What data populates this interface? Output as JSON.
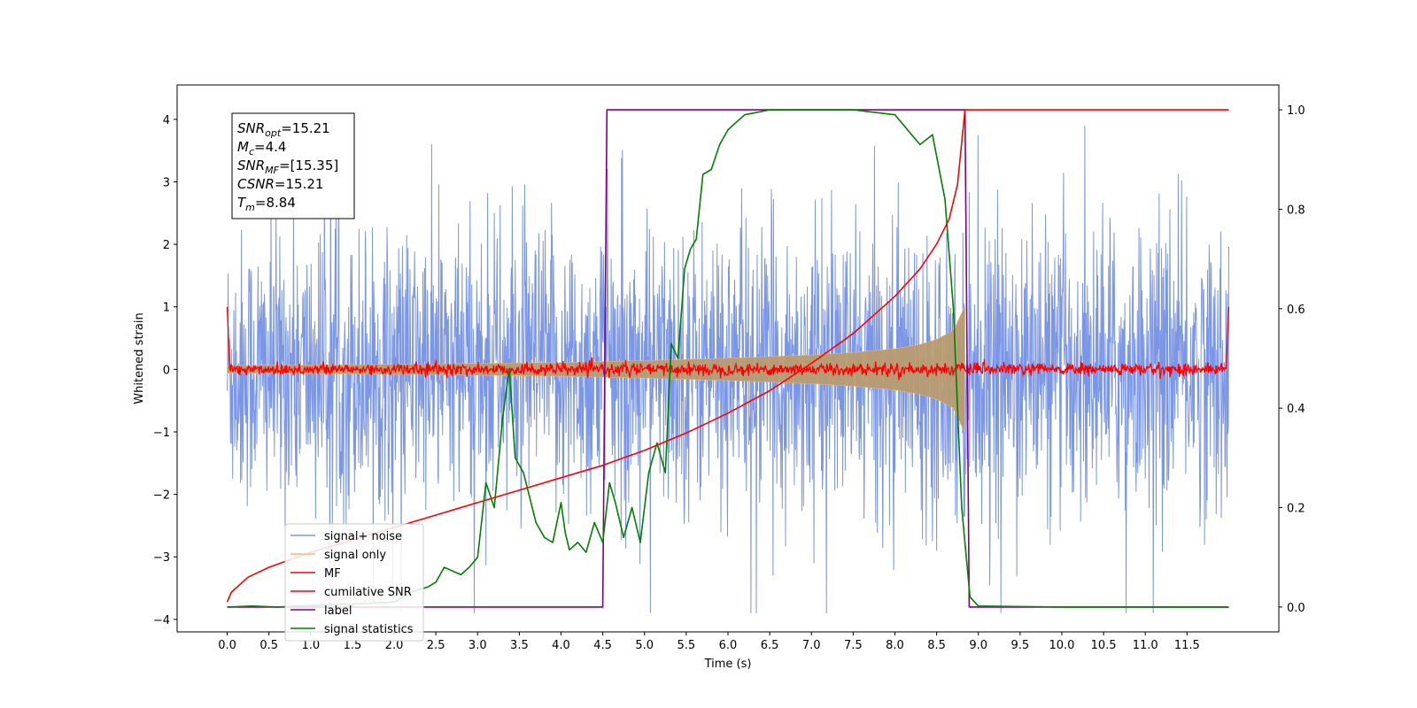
{
  "chart_data": {
    "type": "line",
    "xlabel": "Time (s)",
    "ylabel": "Whitened strain",
    "xlim": [
      -0.6,
      12.6
    ],
    "ylim": [
      -4.2,
      4.55
    ],
    "ylim_right": [
      -0.05,
      1.05
    ],
    "x_ticks": [
      "0.0",
      "0.5",
      "1.0",
      "1.5",
      "2.0",
      "2.5",
      "3.0",
      "3.5",
      "4.0",
      "4.5",
      "5.0",
      "5.5",
      "6.0",
      "6.5",
      "7.0",
      "7.5",
      "8.0",
      "8.5",
      "9.0",
      "9.5",
      "10.0",
      "10.5",
      "11.0",
      "11.5"
    ],
    "y_ticks_left": [
      "4",
      "3",
      "2",
      "1",
      "0",
      "−1",
      "−2",
      "−3",
      "−4"
    ],
    "y_ticks_right": [
      "1.0",
      "0.8",
      "0.6",
      "0.4",
      "0.2",
      "0.0"
    ],
    "info_box": [
      {
        "sym": "SNR",
        "sub": "opt",
        "val": "=15.21"
      },
      {
        "sym": "M",
        "sub": "c",
        "val": "=4.4"
      },
      {
        "sym": "SNR",
        "sub": "MF",
        "val": "=[15.35]"
      },
      {
        "sym": "CSNR",
        "sub": "",
        "val": "=15.21"
      },
      {
        "sym": "T",
        "sub": "m",
        "val": "=8.84"
      }
    ],
    "legend_position": "lower-left",
    "series": [
      {
        "name": "signal+ noise",
        "axis": "left",
        "color": "#7b96e6",
        "description_values": {
          "x_start": 0.0,
          "x_end": 12.0,
          "noise_amplitude_typical": 1.5,
          "peak_range": [
            -3.9,
            3.9
          ]
        }
      },
      {
        "name": "signal only",
        "axis": "left",
        "color": "#f5b97a",
        "envelope": {
          "x": [
            0.0,
            2.0,
            4.0,
            5.0,
            6.0,
            7.0,
            7.5,
            8.0,
            8.3,
            8.5,
            8.7,
            8.84
          ],
          "amp": [
            0.06,
            0.08,
            0.11,
            0.14,
            0.18,
            0.23,
            0.27,
            0.33,
            0.4,
            0.48,
            0.62,
            1.02
          ]
        }
      },
      {
        "name": "MF",
        "axis": "left",
        "color": "#ff0000",
        "description_values": {
          "baseline": 0.0,
          "spike_at_edges": 1.0
        }
      },
      {
        "name": "cumilative SNR",
        "axis": "right",
        "color": "#ff0000",
        "x": [
          0.0,
          0.05,
          0.25,
          0.5,
          1.0,
          1.5,
          2.0,
          2.5,
          3.0,
          3.5,
          4.0,
          4.5,
          5.0,
          5.5,
          6.0,
          6.5,
          7.0,
          7.5,
          8.0,
          8.3,
          8.5,
          8.65,
          8.75,
          8.84,
          12.0
        ],
        "y": [
          0.01,
          0.03,
          0.06,
          0.08,
          0.11,
          0.135,
          0.16,
          0.185,
          0.21,
          0.235,
          0.26,
          0.285,
          0.315,
          0.35,
          0.39,
          0.435,
          0.49,
          0.55,
          0.625,
          0.68,
          0.73,
          0.78,
          0.85,
          1.0,
          1.0
        ]
      },
      {
        "name": "label",
        "axis": "right",
        "color": "#800080",
        "x": [
          0.0,
          4.5,
          4.55,
          8.84,
          8.89,
          12.0
        ],
        "y": [
          0.0,
          0.0,
          1.0,
          1.0,
          0.0,
          0.0
        ]
      },
      {
        "name": "signal statistics",
        "axis": "right",
        "color": "#008000",
        "x": [
          0.0,
          0.3,
          0.6,
          1.0,
          1.5,
          2.0,
          2.2,
          2.4,
          2.5,
          2.6,
          2.8,
          2.9,
          3.0,
          3.1,
          3.2,
          3.3,
          3.38,
          3.45,
          3.55,
          3.7,
          3.8,
          3.9,
          4.0,
          4.05,
          4.1,
          4.2,
          4.3,
          4.4,
          4.5,
          4.58,
          4.65,
          4.75,
          4.85,
          4.95,
          5.05,
          5.15,
          5.25,
          5.32,
          5.4,
          5.48,
          5.55,
          5.62,
          5.7,
          5.8,
          5.9,
          6.0,
          6.2,
          6.5,
          7.0,
          7.5,
          8.0,
          8.3,
          8.45,
          8.6,
          8.7,
          8.8,
          8.9,
          9.0,
          10.0,
          11.0,
          11.5,
          12.0
        ],
        "y": [
          0.0,
          0.002,
          0.0,
          0.003,
          0.006,
          0.01,
          0.03,
          0.04,
          0.05,
          0.08,
          0.065,
          0.08,
          0.1,
          0.25,
          0.2,
          0.38,
          0.48,
          0.3,
          0.27,
          0.17,
          0.14,
          0.13,
          0.21,
          0.15,
          0.115,
          0.13,
          0.11,
          0.17,
          0.13,
          0.25,
          0.21,
          0.14,
          0.2,
          0.13,
          0.27,
          0.33,
          0.27,
          0.53,
          0.5,
          0.68,
          0.72,
          0.74,
          0.87,
          0.88,
          0.93,
          0.96,
          0.99,
          1.0,
          1.0,
          1.0,
          0.99,
          0.93,
          0.95,
          0.82,
          0.6,
          0.2,
          0.02,
          0.002,
          0.0,
          0.0,
          0.0,
          0.0
        ]
      }
    ]
  }
}
